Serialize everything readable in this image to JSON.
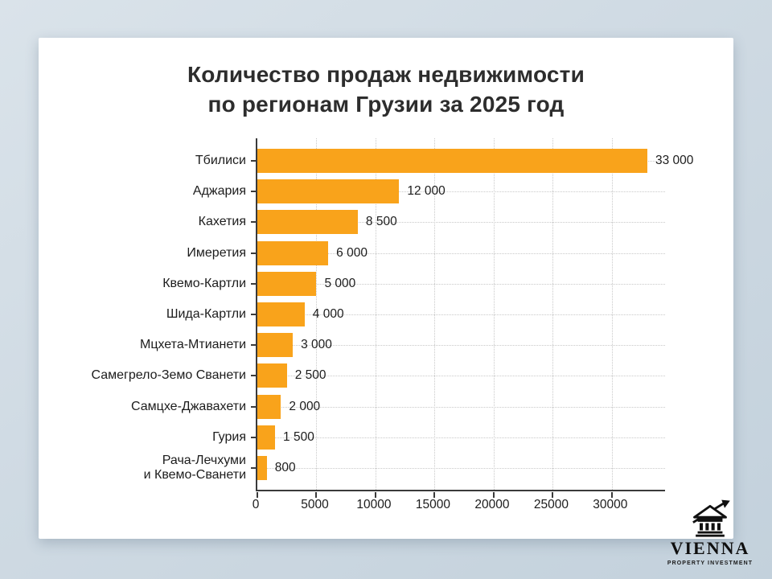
{
  "title_lines": [
    "Количество продаж недвижимости",
    "по регионам Грузии за 2025 год"
  ],
  "chart_data": {
    "type": "bar",
    "orientation": "horizontal",
    "title": "Количество продаж недвижимости по регионам Грузии за 2025 год",
    "categories": [
      "Тбилиси",
      "Аджария",
      "Кахетия",
      "Имеретия",
      "Квемо-Картли",
      "Шида-Картли",
      "Мцхета-Мтианети",
      "Самегрело-Земо Сванети",
      "Самцхе-Джавахети",
      "Гурия",
      "Рача-Лечхуми\nи Квемо-Сванети"
    ],
    "values": [
      33000,
      12000,
      8500,
      6000,
      5000,
      4000,
      3000,
      2500,
      2000,
      1500,
      800
    ],
    "value_labels": [
      "33 000",
      "12 000",
      "8 500",
      "6 000",
      "5 000",
      "4 000",
      "3 000",
      "2 500",
      "2 000",
      "1 500",
      "800"
    ],
    "xlabel": "",
    "ylabel": "",
    "xlim": [
      0,
      34500
    ],
    "xticks": [
      0,
      5000,
      10000,
      15000,
      20000,
      25000,
      30000
    ],
    "xtick_labels": [
      "0",
      "5000",
      "10000",
      "15000",
      "20000",
      "25000",
      "30000"
    ],
    "grid": true,
    "grid_style": "dotted",
    "bar_color": "#F9A31B",
    "legend": "none"
  },
  "logo": {
    "brand": "VIENNA",
    "tagline": "PROPERTY INVESTMENT"
  },
  "colors": {
    "bar": "#F9A31B",
    "axis": "#3a3a3a",
    "grid": "#c9c9c9",
    "text": "#1c1c1c",
    "title": "#2d2d2d",
    "background": "#cdd9e2",
    "card": "#ffffff",
    "logo": "#111111"
  }
}
